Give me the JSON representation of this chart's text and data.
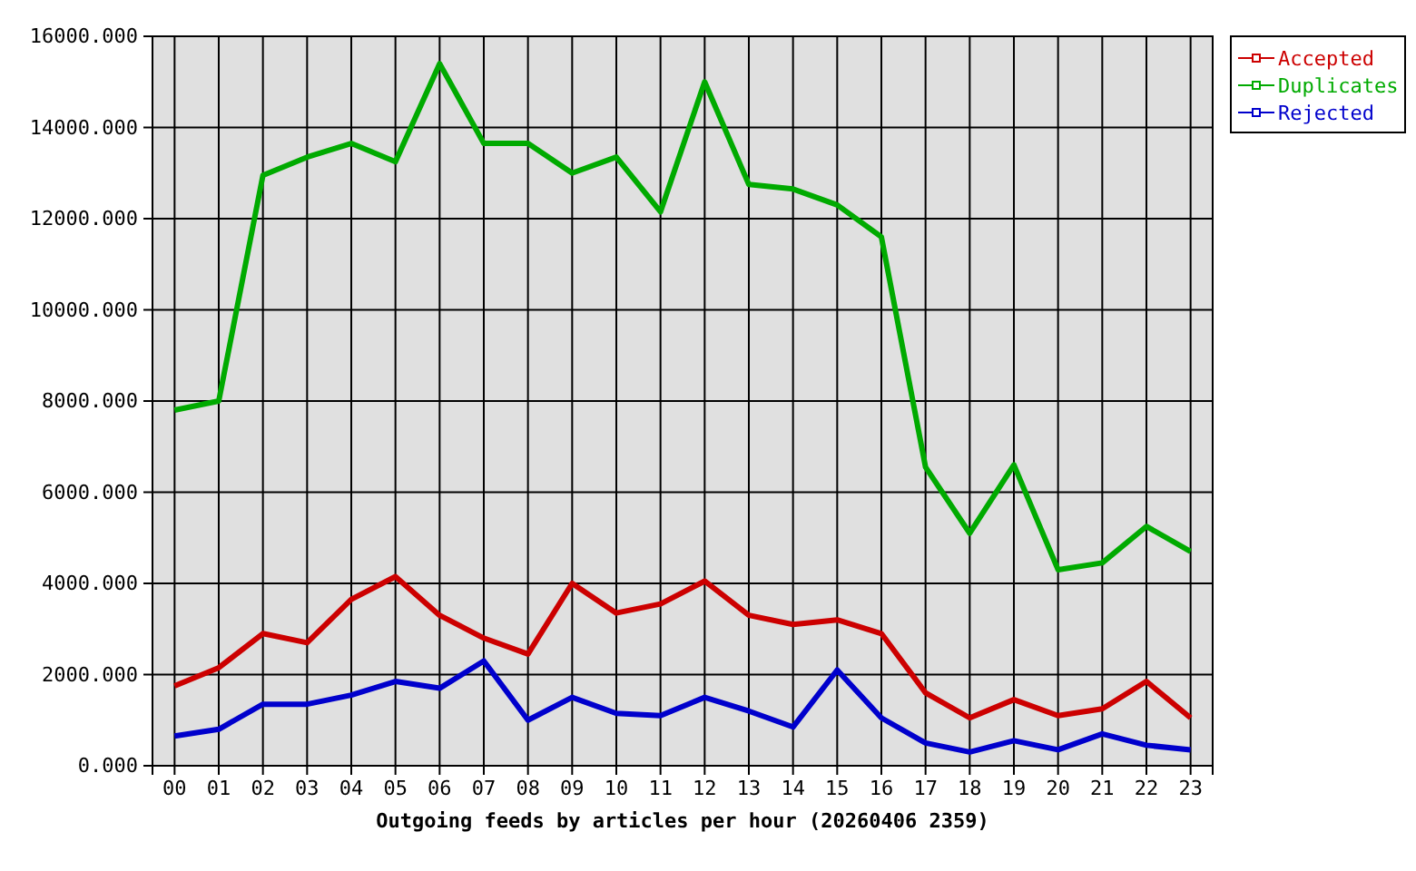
{
  "chart_data": {
    "type": "line",
    "xlabel": "Outgoing feeds by articles per hour (20260406 2359)",
    "categories": [
      "00",
      "01",
      "02",
      "03",
      "04",
      "05",
      "06",
      "07",
      "08",
      "09",
      "10",
      "11",
      "12",
      "13",
      "14",
      "15",
      "16",
      "17",
      "18",
      "19",
      "20",
      "21",
      "22",
      "23"
    ],
    "series": [
      {
        "name": "Accepted",
        "color": "#cc0000",
        "values": [
          1750,
          2150,
          2900,
          2700,
          3650,
          4150,
          3300,
          2800,
          2450,
          4000,
          3350,
          3550,
          4050,
          3300,
          3100,
          3200,
          2900,
          1600,
          1050,
          1450,
          1100,
          1250,
          1850,
          1050
        ]
      },
      {
        "name": "Duplicates",
        "color": "#00aa00",
        "values": [
          7800,
          8000,
          12950,
          13350,
          13650,
          13250,
          15400,
          13650,
          13650,
          13000,
          13350,
          12150,
          15000,
          12750,
          12650,
          12300,
          11600,
          6550,
          5100,
          6600,
          4300,
          4450,
          5250,
          4700
        ]
      },
      {
        "name": "Rejected",
        "color": "#0000cc",
        "values": [
          650,
          800,
          1350,
          1350,
          1550,
          1850,
          1700,
          2300,
          1000,
          1500,
          1150,
          1100,
          1500,
          1200,
          850,
          2100,
          1050,
          500,
          300,
          550,
          350,
          700,
          450,
          350
        ]
      }
    ],
    "ylim": [
      0,
      16000
    ],
    "yticks": [
      {
        "value": 0,
        "label": "0.000"
      },
      {
        "value": 2000,
        "label": "2000.000"
      },
      {
        "value": 4000,
        "label": "4000.000"
      },
      {
        "value": 6000,
        "label": "6000.000"
      },
      {
        "value": 8000,
        "label": "8000.000"
      },
      {
        "value": 10000,
        "label": "10000.000"
      },
      {
        "value": 12000,
        "label": "12000.000"
      },
      {
        "value": 14000,
        "label": "14000.000"
      },
      {
        "value": 16000,
        "label": "16000.000"
      }
    ],
    "grid": true,
    "legend": "top right",
    "marker": "none",
    "line_style": "solid"
  }
}
